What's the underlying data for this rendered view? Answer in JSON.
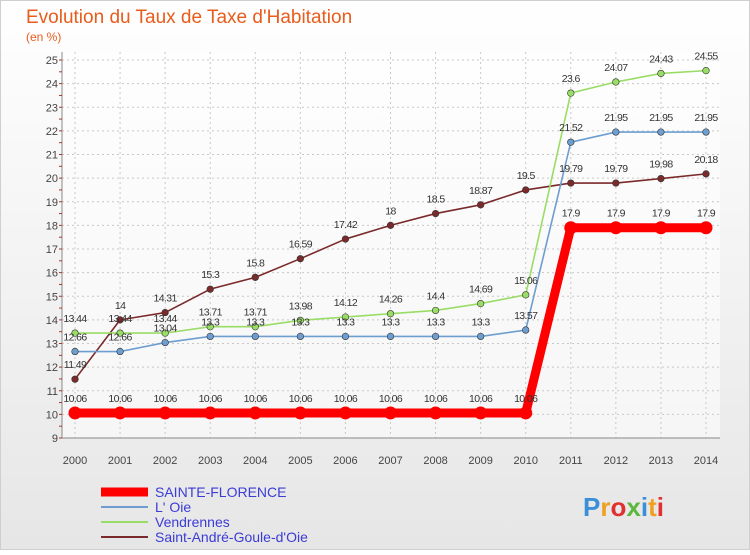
{
  "chart_data": {
    "type": "line",
    "title": "Evolution du Taux de Taxe d'Habitation",
    "subtitle": "(en %)",
    "xlabel": "",
    "ylabel": "",
    "x": [
      2000,
      2001,
      2002,
      2003,
      2004,
      2005,
      2006,
      2007,
      2008,
      2009,
      2010,
      2011,
      2012,
      2013,
      2014
    ],
    "ylim": [
      9,
      25
    ],
    "yticks": [
      9,
      10,
      11,
      12,
      13,
      14,
      15,
      16,
      17,
      18,
      19,
      20,
      21,
      22,
      23,
      24,
      25
    ],
    "grid": true,
    "legend_position": "bottom-left",
    "series": [
      {
        "name": "SAINTE-FLORENCE",
        "color": "#ff0000",
        "values": [
          10.06,
          10.06,
          10.06,
          10.06,
          10.06,
          10.06,
          10.06,
          10.06,
          10.06,
          10.06,
          10.06,
          17.9,
          17.9,
          17.9,
          17.9
        ],
        "labels": [
          "10.06",
          "10.06",
          "10.06",
          "10.06",
          "10.06",
          "10.06",
          "10.06",
          "10.06",
          "10.06",
          "10.06",
          "10.06",
          "17.9",
          "17.9",
          "17.9",
          "17.9"
        ]
      },
      {
        "name": "L' Oie",
        "color": "#6d9ecf",
        "values": [
          12.66,
          12.66,
          13.04,
          13.3,
          13.3,
          13.3,
          13.3,
          13.3,
          13.3,
          13.3,
          13.57,
          21.52,
          21.95,
          21.95,
          21.95
        ],
        "labels": [
          "12.66",
          "12.66",
          "13.04",
          "13.3",
          "13.3",
          "13.3",
          "13.3",
          "13.3",
          "13.3",
          "13.3",
          "13.57",
          "21.52",
          "21.95",
          "21.95",
          "21.95"
        ]
      },
      {
        "name": "Vendrennes",
        "color": "#99dd66",
        "values": [
          13.44,
          13.44,
          13.44,
          13.71,
          13.71,
          13.98,
          14.12,
          14.26,
          14.4,
          14.69,
          15.06,
          23.6,
          24.07,
          24.43,
          24.55
        ],
        "labels": [
          "13.44",
          "13.44",
          "13.44",
          "13.71",
          "13.71",
          "13.98",
          "14.12",
          "14.26",
          "14.4",
          "14.69",
          "15.06",
          "23.6",
          "24.07",
          "24.43",
          "24.55"
        ]
      },
      {
        "name": "Saint-André-Goule-d'Oie",
        "color": "#7a2a2a",
        "values": [
          11.49,
          14,
          14.31,
          15.3,
          15.8,
          16.59,
          17.42,
          18,
          18.5,
          18.87,
          19.5,
          19.79,
          19.79,
          19.98,
          20.18
        ],
        "labels": [
          "11.49",
          "14",
          "14.31",
          "15.3",
          "15.8",
          "16.59",
          "17.42",
          "18",
          "18.5",
          "18.87",
          "19.5",
          "19.79",
          "19.79",
          "19.98",
          "20.18"
        ]
      }
    ]
  },
  "logo": {
    "text": "Proxiti",
    "colors": [
      "#3a8fd8",
      "#f0a020",
      "#e03030",
      "#5cb83c"
    ]
  }
}
